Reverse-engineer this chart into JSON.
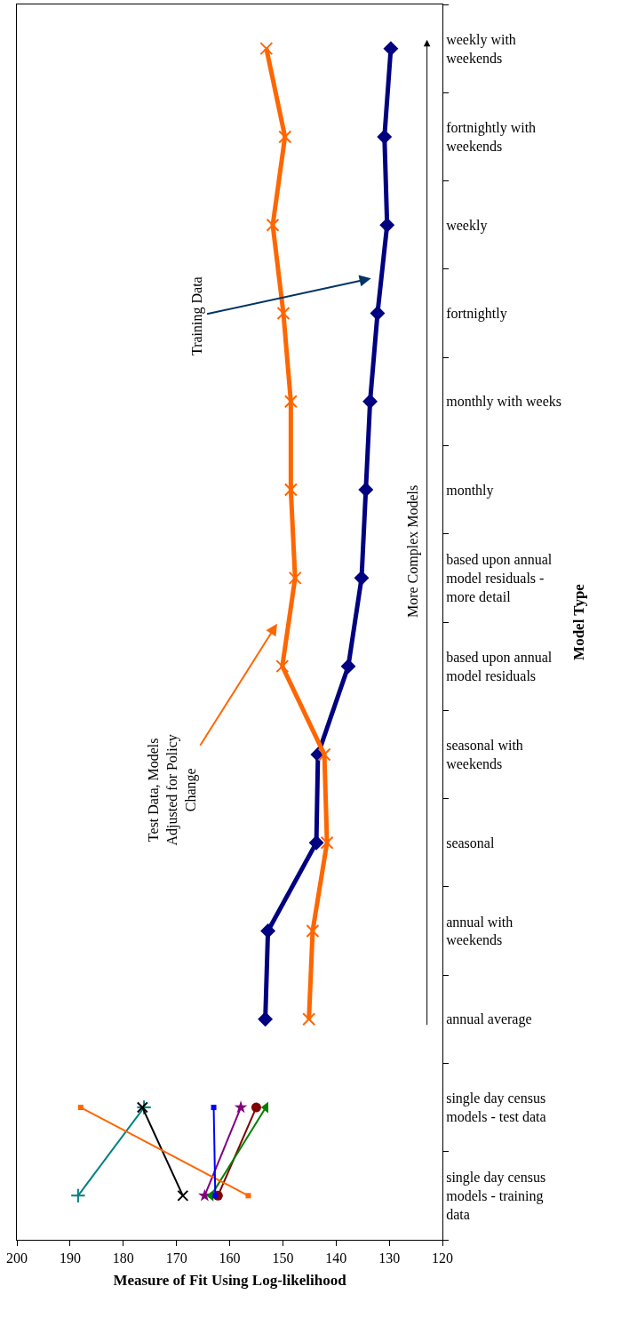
{
  "chart_data": {
    "type": "line",
    "orientation": "horizontal",
    "xlabel": "Measure of Fit Using Log-likelihood",
    "ylabel": "Model Type",
    "categories": [
      "weekly with weekends",
      "fortnightly with weekends",
      "weekly",
      "fortnightly",
      "monthly with weeks",
      "monthly",
      "based upon annual model residuals - more detail",
      "based upon annual model residuals",
      "seasonal with weekends",
      "seasonal",
      "annual with weekends",
      "annual average",
      "single day census models - test data",
      "single day census models - training data"
    ],
    "series": [
      {
        "name": "Training Data",
        "color": "#000080",
        "marker": "diamond",
        "values": [
          129.7,
          130.9,
          130.4,
          132.2,
          133.6,
          134.4,
          135.2,
          137.7,
          143.4,
          143.7,
          152.8,
          153.3,
          null,
          null
        ]
      },
      {
        "name": "Test Data, Models Adjusted for Policy Change",
        "color": "#ff6600",
        "marker": "x",
        "values": [
          153.1,
          149.6,
          151.9,
          149.9,
          148.5,
          148.5,
          147.7,
          150.1,
          142.2,
          141.7,
          144.4,
          145.1,
          null,
          null
        ]
      },
      {
        "color": "#ff6600",
        "marker": "square",
        "values": [
          null,
          null,
          null,
          null,
          null,
          null,
          null,
          null,
          null,
          null,
          null,
          null,
          188.0,
          156.5
        ]
      },
      {
        "color": "#008080",
        "marker": "cross",
        "values": [
          null,
          null,
          null,
          null,
          null,
          null,
          null,
          null,
          null,
          null,
          null,
          null,
          176.1,
          188.5
        ]
      },
      {
        "color": "#000000",
        "marker": "x",
        "values": [
          null,
          null,
          null,
          null,
          null,
          null,
          null,
          null,
          null,
          null,
          null,
          null,
          176.4,
          168.8
        ]
      },
      {
        "color": "#0000ff",
        "marker": "square",
        "values": [
          null,
          null,
          null,
          null,
          null,
          null,
          null,
          null,
          null,
          null,
          null,
          null,
          163.0,
          162.7
        ]
      },
      {
        "color": "#800080",
        "marker": "star",
        "values": [
          null,
          null,
          null,
          null,
          null,
          null,
          null,
          null,
          null,
          null,
          null,
          null,
          157.9,
          164.7
        ]
      },
      {
        "color": "#800000",
        "marker": "circle",
        "values": [
          null,
          null,
          null,
          null,
          null,
          null,
          null,
          null,
          null,
          null,
          null,
          null,
          155.0,
          162.2
        ]
      },
      {
        "color": "#008000",
        "marker": "triangle",
        "values": [
          null,
          null,
          null,
          null,
          null,
          null,
          null,
          null,
          null,
          null,
          null,
          null,
          153.2,
          163.5
        ]
      }
    ],
    "annotations": [
      "More Complex Models"
    ],
    "xlim": [
      200,
      120
    ],
    "xticks": [
      200,
      190,
      180,
      170,
      160,
      150,
      140,
      130,
      120
    ],
    "grid": false,
    "legend": false
  }
}
